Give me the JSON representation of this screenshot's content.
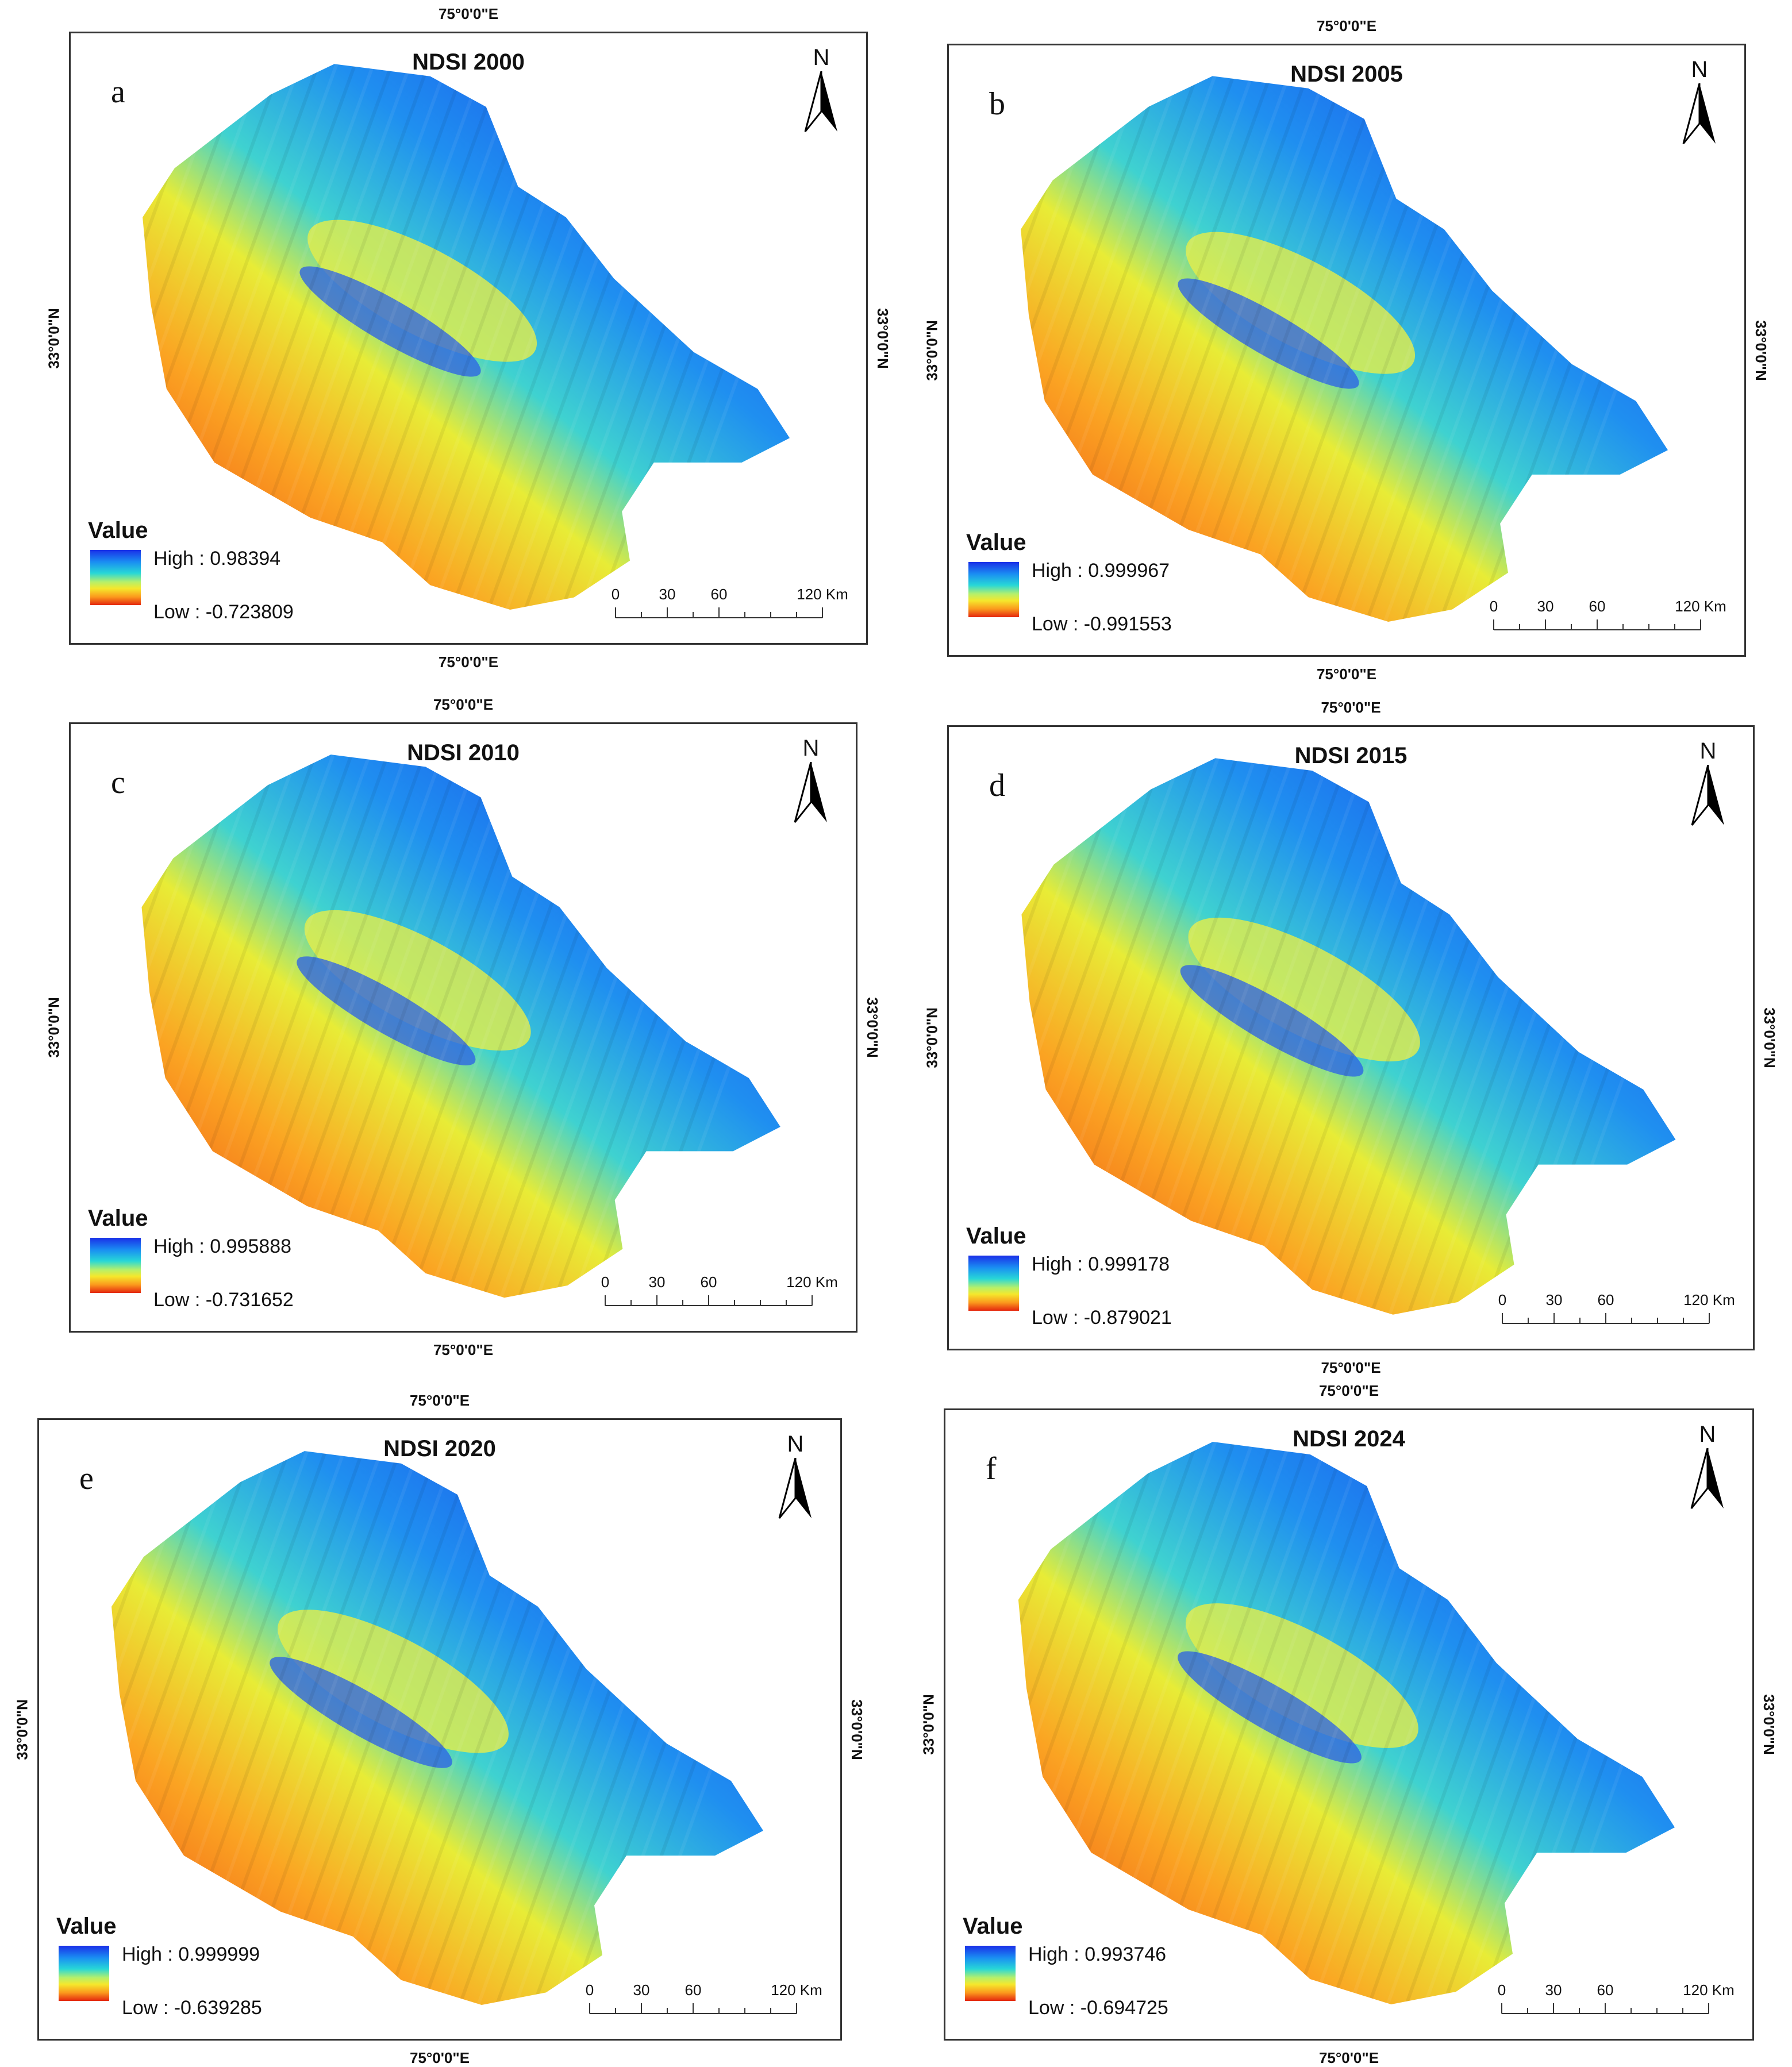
{
  "north_label": "N",
  "scale": {
    "ticks": [
      "0",
      "30",
      "60",
      "120 Km"
    ]
  },
  "legend_title": "Value",
  "colors": {
    "high": "#1a2fe8",
    "mid": "#f5e82c",
    "low": "#e4260e"
  },
  "panels": [
    {
      "letter": "a",
      "title": "NDSI 2000",
      "coord_top": "75°0'0\"E",
      "coord_bottom": "75°0'0\"E",
      "coord_left": "33°0'0\"N",
      "coord_right": "33°0'0\"N",
      "high": "High : 0.98394",
      "low": "Low : -0.723809"
    },
    {
      "letter": "b",
      "title": "NDSI 2005",
      "coord_top": "75°0'0\"E",
      "coord_bottom": "75°0'0\"E",
      "coord_left": "33°0'0\"N",
      "coord_right": "33°0'0\"N",
      "high": "High : 0.999967",
      "low": "Low : -0.991553"
    },
    {
      "letter": "c",
      "title": "NDSI 2010",
      "coord_top": "75°0'0\"E",
      "coord_bottom": "75°0'0\"E",
      "coord_left": "33°0'0\"N",
      "coord_right": "33°0'0\"N",
      "high": "High : 0.995888",
      "low": "Low : -0.731652"
    },
    {
      "letter": "d",
      "title": "NDSI 2015",
      "coord_top": "75°0'0\"E",
      "coord_bottom": "75°0'0\"E",
      "coord_left": "33°0'0\"N",
      "coord_right": "33°0'0\"N",
      "high": "High : 0.999178",
      "low": "Low : -0.879021"
    },
    {
      "letter": "e",
      "title": "NDSI 2020",
      "coord_top": "75°0'0\"E",
      "coord_bottom": "75°0'0\"E",
      "coord_left": "33°0'0\"N",
      "coord_right": "33°0'0\"N",
      "high": "High : 0.999999",
      "low": "Low : -0.639285"
    },
    {
      "letter": "f",
      "title": "NDSI 2024",
      "coord_top": "75°0'0\"E",
      "coord_bottom": "75°0'0\"E",
      "coord_left": "33°0'0\"N",
      "coord_right": "33°0'0\"N",
      "high": "High : 0.993746",
      "low": "Low : -0.694725"
    }
  ]
}
